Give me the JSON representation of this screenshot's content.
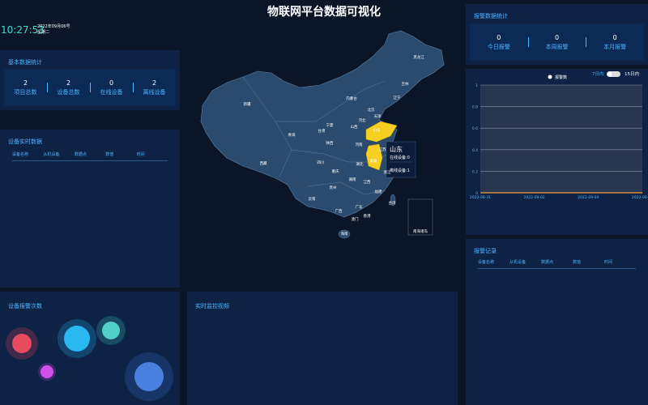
{
  "header": {
    "title": "物联网平台数据可视化",
    "time": "10:27:53",
    "date": "2022年09月06号",
    "weekday": "星期二"
  },
  "basic_stats": {
    "title": "基本数据统计",
    "items": [
      {
        "value": 2,
        "label": "项目总数"
      },
      {
        "value": 2,
        "label": "设备总数"
      },
      {
        "value": 0,
        "label": "在线设备"
      },
      {
        "value": 2,
        "label": "离线设备"
      }
    ]
  },
  "device_data": {
    "title": "设备实时数据",
    "columns": [
      "设备名称",
      "从机设备",
      "数据点",
      "数值",
      "时间"
    ]
  },
  "alarm_counts": {
    "title": "设备报警次数"
  },
  "video": {
    "title": "实时监控视频"
  },
  "map": {
    "provinces": [
      "新疆",
      "西藏",
      "青海",
      "甘肃",
      "内蒙古",
      "黑龙江",
      "吉林",
      "辽宁",
      "北京",
      "天津",
      "河北",
      "山西",
      "山东",
      "河南",
      "陕西",
      "宁夏",
      "四川",
      "重庆",
      "湖北",
      "安徽",
      "江苏",
      "浙江",
      "江西",
      "湖南",
      "贵州",
      "云南",
      "广西",
      "广东",
      "福建",
      "台湾",
      "香港",
      "澳门",
      "海南",
      "南海诸岛"
    ],
    "tooltip": {
      "province": "山东",
      "lines": [
        "在线设备:0",
        "离线设备:1"
      ]
    }
  },
  "alarm_stats": {
    "title": "报警数据统计",
    "items": [
      {
        "value": 0,
        "label": "今日报警"
      },
      {
        "value": 0,
        "label": "本周报警"
      },
      {
        "value": 0,
        "label": "本月报警"
      }
    ]
  },
  "alarm_chart": {
    "type": "line",
    "ranges": [
      "7日内",
      "15日内"
    ],
    "x": [
      "2022-08-31",
      null,
      "2022-09-02",
      null,
      "2022-09-04",
      null,
      "2022-09-06"
    ],
    "series": [
      {
        "name": "报警数",
        "color": "#f0a030",
        "values": [
          0,
          0,
          0,
          0,
          0,
          0,
          0
        ]
      }
    ],
    "ylim": [
      0,
      1
    ],
    "yticks": [
      0,
      0.2,
      0.4,
      0.6,
      0.8,
      1
    ],
    "grid": true
  },
  "alarm_records": {
    "title": "报警记录",
    "columns": [
      "设备名称",
      "从机设备",
      "数据点",
      "数值",
      "时间"
    ]
  }
}
